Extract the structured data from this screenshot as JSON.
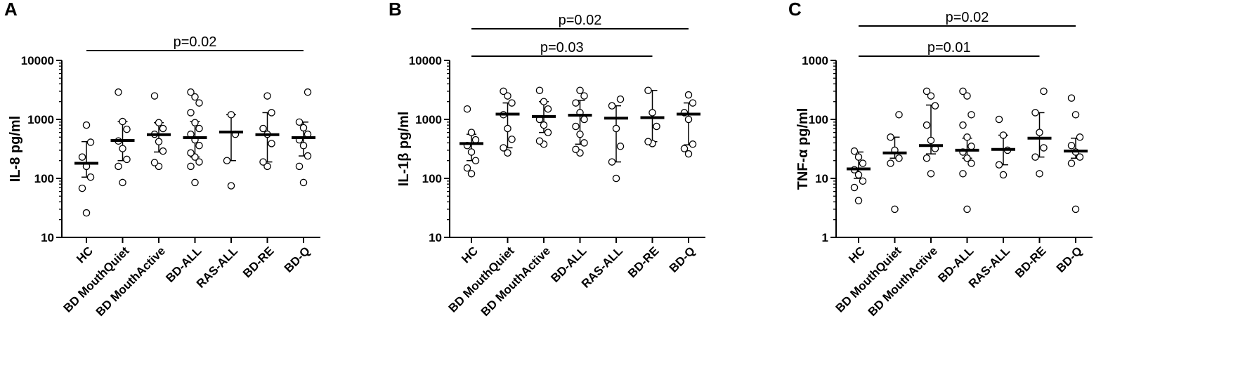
{
  "chart_data": [
    {
      "panel_label": "A",
      "type": "scatter",
      "ylabel": "IL-8 pg/ml",
      "yscale": "log",
      "ylim": [
        10,
        10000
      ],
      "yticks": [
        "10",
        "100",
        "1000",
        "10000"
      ],
      "categories": [
        "HC",
        "BD MouthQuiet",
        "BD MouthActive",
        "BD-ALL",
        "RAS-ALL",
        "BD-RE",
        "BD-Q"
      ],
      "points": [
        [
          26,
          68,
          105,
          160,
          230,
          410,
          800
        ],
        [
          85,
          160,
          210,
          320,
          430,
          680,
          920,
          2900
        ],
        [
          160,
          185,
          290,
          420,
          560,
          700,
          880,
          2500
        ],
        [
          85,
          160,
          190,
          230,
          270,
          360,
          450,
          560,
          700,
          880,
          1300,
          1900,
          2400,
          2900
        ],
        [
          75,
          200,
          560,
          1200
        ],
        [
          160,
          190,
          390,
          560,
          700,
          1300,
          2500
        ],
        [
          85,
          160,
          240,
          360,
          450,
          560,
          720,
          900,
          2900
        ]
      ],
      "median": [
        180,
        440,
        550,
        490,
        610,
        550,
        490
      ],
      "error_low": [
        105,
        200,
        280,
        230,
        200,
        190,
        240
      ],
      "error_high": [
        420,
        920,
        880,
        920,
        1200,
        1300,
        900
      ],
      "annotations": [
        {
          "text": "p=0.02",
          "from": 0,
          "to": 6
        }
      ]
    },
    {
      "panel_label": "B",
      "type": "scatter",
      "ylabel": "IL-1β pg/ml",
      "yscale": "log",
      "ylim": [
        10,
        10000
      ],
      "yticks": [
        "10",
        "100",
        "1000",
        "10000"
      ],
      "categories": [
        "HC",
        "BD MouthQuiet",
        "BD MouthActive",
        "BD-ALL",
        "RAS-ALL",
        "BD-RE",
        "BD-Q"
      ],
      "points": [
        [
          120,
          150,
          200,
          280,
          360,
          450,
          600,
          1500
        ],
        [
          270,
          330,
          460,
          700,
          1200,
          1900,
          2500,
          3000
        ],
        [
          380,
          430,
          600,
          800,
          1000,
          1500,
          2000,
          3100
        ],
        [
          270,
          310,
          400,
          560,
          760,
          1000,
          1300,
          1900,
          2500,
          3100
        ],
        [
          100,
          190,
          350,
          700,
          1700,
          2200
        ],
        [
          390,
          420,
          760,
          1300,
          3100
        ],
        [
          260,
          320,
          380,
          1000,
          1300,
          1900,
          2600
        ]
      ],
      "median": [
        390,
        1230,
        1120,
        1180,
        1050,
        1070,
        1230
      ],
      "error_low": [
        200,
        330,
        600,
        380,
        190,
        420,
        370
      ],
      "error_high": [
        560,
        1900,
        2000,
        2100,
        1700,
        3100,
        1900
      ],
      "annotations": [
        {
          "text": "p=0.03",
          "from": 0,
          "to": 5
        },
        {
          "text": "p=0.02",
          "from": 0,
          "to": 6
        }
      ]
    },
    {
      "panel_label": "C",
      "type": "scatter",
      "ylabel": "TNF-α pg/ml",
      "yscale": "log",
      "ylim": [
        1,
        1000
      ],
      "yticks": [
        "1",
        "10",
        "100",
        "1000"
      ],
      "categories": [
        "HC",
        "BD MouthQuiet",
        "BD MouthActive",
        "BD-ALL",
        "RAS-ALL",
        "BD-RE",
        "BD-Q"
      ],
      "points": [
        [
          4.2,
          7,
          9,
          11.5,
          14,
          18,
          23,
          29
        ],
        [
          3,
          18,
          22,
          30,
          50,
          120
        ],
        [
          12,
          22,
          32,
          44,
          80,
          170,
          250,
          300
        ],
        [
          3,
          12,
          18,
          22,
          28,
          35,
          50,
          80,
          120,
          250,
          300
        ],
        [
          11.5,
          17,
          30,
          54,
          100
        ],
        [
          12,
          23,
          33,
          60,
          130,
          300
        ],
        [
          3,
          18,
          23,
          28,
          36,
          50,
          120,
          230
        ]
      ],
      "median": [
        14.5,
        27,
        36,
        30,
        31,
        48,
        29
      ],
      "error_low": [
        10,
        22,
        26,
        22,
        17,
        23,
        22
      ],
      "error_high": [
        28,
        50,
        175,
        48,
        54,
        130,
        48
      ],
      "annotations": [
        {
          "text": "p=0.01",
          "from": 0,
          "to": 5
        },
        {
          "text": "p=0.02",
          "from": 0,
          "to": 6
        }
      ]
    }
  ]
}
